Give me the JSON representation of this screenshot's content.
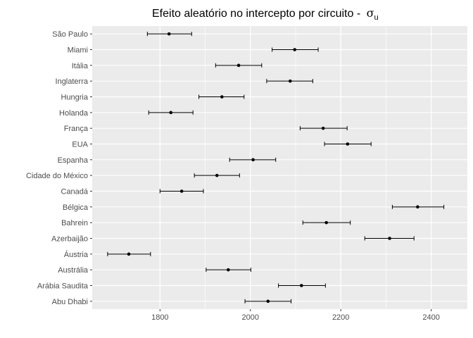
{
  "chart_data": {
    "type": "errorbar",
    "title": "Efeito aleatório no intercepto por circuito - ",
    "title_symbol": "σ",
    "title_subscript": "u",
    "xlabel": "",
    "ylabel": "",
    "xlim": [
      1650,
      2480
    ],
    "xticks": [
      1800,
      2000,
      2200,
      2400
    ],
    "grid": true,
    "background": "#ebebeb",
    "gridline_color": "#ffffff",
    "point_color": "#000000",
    "categories": [
      "São Paulo",
      "Miami",
      "Itália",
      "Inglaterra",
      "Hungria",
      "Holanda",
      "França",
      "EUA",
      "Espanha",
      "Cidade do México",
      "Canadá",
      "Bélgica",
      "Bahrein",
      "Azerbaijão",
      "Áustria",
      "Austrália",
      "Arábia Saudita",
      "Abu Dhabi"
    ],
    "estimates": [
      1820,
      2098,
      1974,
      2088,
      1937,
      1824,
      2161,
      2215,
      2006,
      1926,
      1848,
      2370,
      2168,
      2308,
      1731,
      1951,
      2113,
      2039
    ],
    "lower": [
      1772,
      2048,
      1923,
      2036,
      1886,
      1775,
      2110,
      2164,
      1954,
      1876,
      1800,
      2314,
      2116,
      2253,
      1684,
      1902,
      2062,
      1988
    ],
    "upper": [
      1870,
      2150,
      2025,
      2138,
      1986,
      1873,
      2214,
      2267,
      2056,
      1976,
      1896,
      2428,
      2221,
      2362,
      1779,
      2001,
      2166,
      2090
    ]
  }
}
